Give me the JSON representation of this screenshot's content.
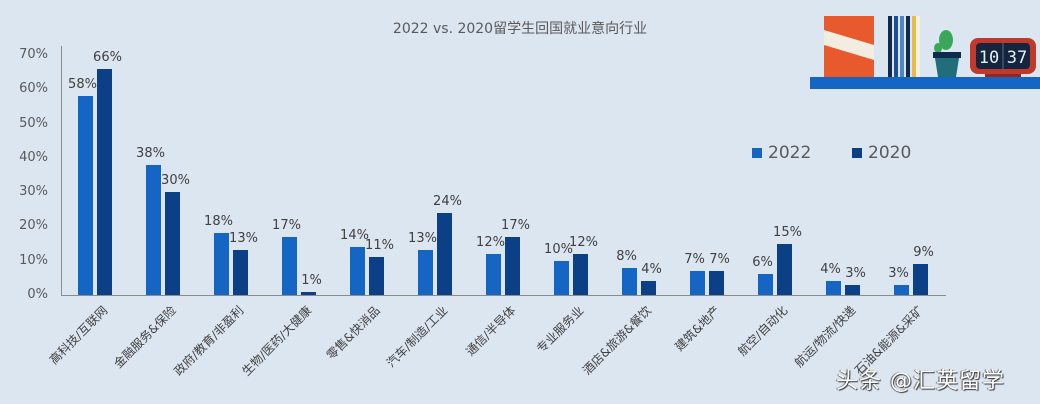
{
  "chart_data": {
    "type": "bar",
    "title": "2022 vs. 2020留学生回国就业意向行业",
    "xlabel": "",
    "ylabel": "",
    "ylim": [
      0,
      70
    ],
    "yticks": [
      "0%",
      "10%",
      "20%",
      "30%",
      "40%",
      "50%",
      "60%",
      "70%"
    ],
    "grid": false,
    "legend_position": "upper right",
    "categories": [
      "高科技/互联网",
      "金融服务&保险",
      "政府/教育/非盈利",
      "生物/医药/大健康",
      "零售&快消品",
      "汽车/制造/工业",
      "通信/半导体",
      "专业服务业",
      "酒店&旅游&餐饮",
      "建筑&地产",
      "航空/自动化",
      "航运/物流/快递",
      "石油&能源&采矿"
    ],
    "series": [
      {
        "name": "2022",
        "color": "#1565c4",
        "values": [
          58,
          38,
          18,
          17,
          14,
          13,
          12,
          10,
          8,
          7,
          6,
          4,
          3
        ]
      },
      {
        "name": "2020",
        "color": "#0b3f86",
        "values": [
          66,
          30,
          13,
          1,
          11,
          24,
          17,
          12,
          4,
          7,
          15,
          3,
          9
        ]
      }
    ]
  },
  "legend": [
    {
      "label": "2022",
      "color": "#1565c4"
    },
    {
      "label": "2020",
      "color": "#0b3f86"
    }
  ],
  "decoration": {
    "clock_hours": "10",
    "clock_minutes": "37"
  },
  "watermark": "头条 @汇英留学"
}
